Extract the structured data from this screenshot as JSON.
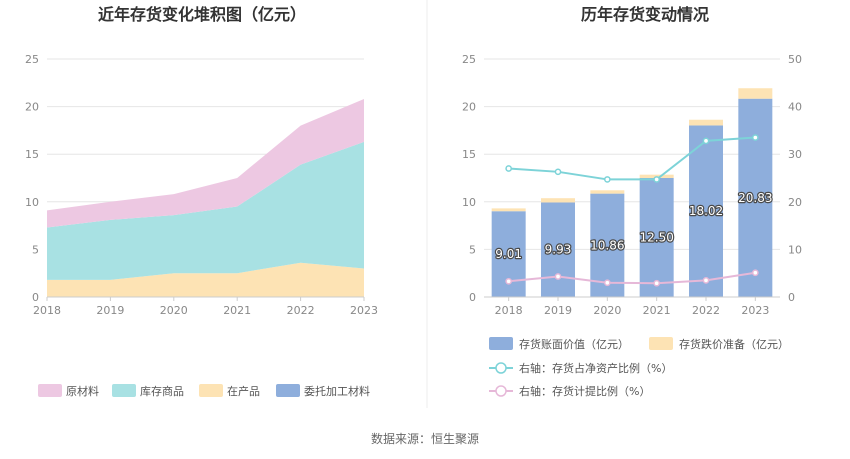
{
  "colors": {
    "raw_materials": "#edc8e2",
    "inventory_goods": "#a8e1e3",
    "wip": "#fde3b4",
    "consigned": "#8eaedc",
    "book_value": "#8eaedc",
    "impairment": "#fde3b4",
    "ratio_net_assets": "#7dd3d8",
    "ratio_provision": "#e6b8d8",
    "grid": "#e6e6e6",
    "axis": "#cccccc"
  },
  "chart_data": [
    {
      "type": "area",
      "title": "近年存货变化堆积图（亿元）",
      "x": [
        "2018",
        "2019",
        "2020",
        "2021",
        "2022",
        "2023"
      ],
      "ylim": [
        0,
        25
      ],
      "yticks": [
        "0",
        "5",
        "10",
        "15",
        "20",
        "25"
      ],
      "stack_order": [
        "委托加工材料",
        "在产品",
        "库存商品",
        "原材料"
      ],
      "series": [
        {
          "name": "原材料",
          "color_key": "raw_materials",
          "values": [
            1.8,
            1.9,
            2.2,
            3.0,
            4.1,
            4.5
          ]
        },
        {
          "name": "库存商品",
          "color_key": "inventory_goods",
          "values": [
            5.5,
            6.3,
            6.1,
            7.0,
            10.3,
            13.3
          ]
        },
        {
          "name": "在产品",
          "color_key": "wip",
          "values": [
            1.8,
            1.8,
            2.5,
            2.5,
            3.6,
            3.0
          ]
        },
        {
          "name": "委托加工材料",
          "color_key": "consigned",
          "values": [
            0.0,
            0.0,
            0.0,
            0.0,
            0.0,
            0.0
          ]
        }
      ],
      "legend": [
        "原材料",
        "库存商品",
        "在产品",
        "委托加工材料"
      ]
    },
    {
      "type": "bar",
      "title": "历年存货变动情况",
      "categories": [
        "2018",
        "2019",
        "2020",
        "2021",
        "2022",
        "2023"
      ],
      "ylim": [
        0,
        25
      ],
      "yticks": [
        "0",
        "5",
        "10",
        "15",
        "20",
        "25"
      ],
      "y2lim": [
        0,
        50
      ],
      "y2ticks": [
        "0",
        "10",
        "20",
        "30",
        "40",
        "50"
      ],
      "series": [
        {
          "name": "存货账面价值（亿元）",
          "color_key": "book_value",
          "values": [
            9.01,
            9.93,
            10.86,
            12.5,
            18.02,
            20.83
          ],
          "labels": [
            "9.01",
            "9.93",
            "10.86",
            "12.50",
            "18.02",
            "20.83"
          ]
        },
        {
          "name": "存货跌价准备（亿元）",
          "color_key": "impairment",
          "values": [
            0.3,
            0.45,
            0.35,
            0.35,
            0.6,
            1.1
          ]
        }
      ],
      "lines": [
        {
          "name": "右轴：存货占净资产比例（%）",
          "color_key": "ratio_net_assets",
          "values": [
            27.0,
            26.3,
            24.7,
            24.7,
            32.8,
            33.5
          ]
        },
        {
          "name": "右轴：存货计提比例（%）",
          "color_key": "ratio_provision",
          "values": [
            3.3,
            4.3,
            3.0,
            2.9,
            3.5,
            5.1
          ]
        }
      ]
    }
  ],
  "footer": {
    "source": "数据来源：恒生聚源"
  }
}
